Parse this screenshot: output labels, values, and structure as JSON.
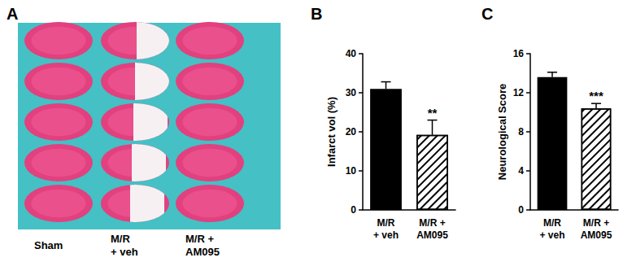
{
  "panel_labels": [
    "A",
    "B",
    "C"
  ],
  "photo": {
    "column_labels": [
      "Sham",
      "M/R\n+ veh",
      "M/R +\nAM095"
    ]
  },
  "chart_data": [
    {
      "type": "bar",
      "categories": [
        "M/R\n+ veh",
        "M/R +\nAM095"
      ],
      "values": [
        31,
        19.2
      ],
      "errors": [
        1.8,
        3.8
      ],
      "colors": [
        "#000000",
        "#ffffff"
      ],
      "ylabel": "Infarct vol (%)",
      "ylim": [
        0,
        40
      ],
      "yticks": [
        0,
        10,
        20,
        30,
        40
      ],
      "grid": false,
      "annotations": [
        {
          "category": "M/R +\nAM095",
          "text": "**"
        }
      ]
    },
    {
      "type": "bar",
      "categories": [
        "M/R\n+ veh",
        "M/R +\nAM095"
      ],
      "values": [
        13.6,
        10.4
      ],
      "errors": [
        0.5,
        0.5
      ],
      "colors": [
        "#000000",
        "#ffffff"
      ],
      "ylabel": "Neurological Score",
      "ylim": [
        0,
        16
      ],
      "yticks": [
        0,
        4,
        8,
        12,
        16
      ],
      "grid": false,
      "annotations": [
        {
          "category": "M/R +\nAM095",
          "text": "***"
        }
      ]
    }
  ]
}
